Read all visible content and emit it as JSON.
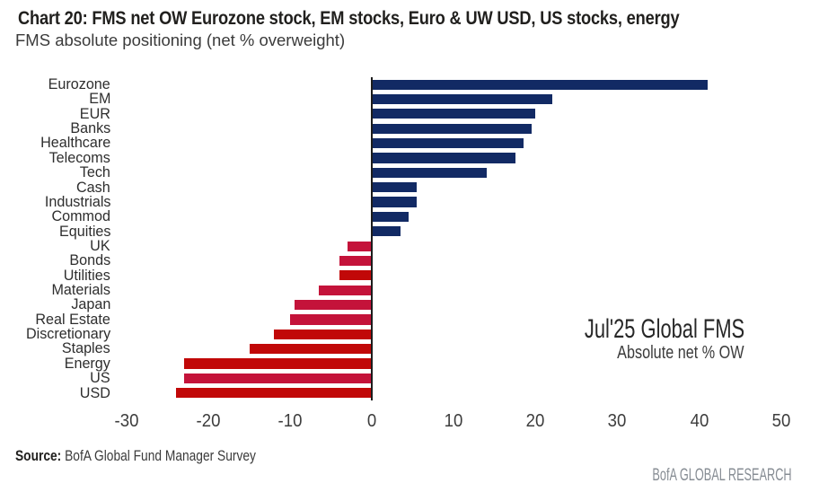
{
  "title": "Chart 20: FMS net OW Eurozone stock, EM stocks, Euro & UW USD, US stocks, energy",
  "subtitle": "FMS absolute positioning (net % overweight)",
  "annotation": {
    "line1": "Jul'25 Global FMS",
    "line2": "Absolute net % OW"
  },
  "source": {
    "label": "Source:",
    "text": " BofA Global Fund Manager Survey"
  },
  "footer": "BofA GLOBAL RESEARCH",
  "colors": {
    "positive_navy": "#122a64",
    "negative_crimson": "#c4133a",
    "negative_red": "#c10808",
    "axis_line": "#1c1c1c"
  },
  "chart_data": {
    "type": "bar",
    "orientation": "horizontal",
    "title": "Chart 20: FMS net OW Eurozone stock, EM stocks, Euro & UW USD, US stocks, energy",
    "subtitle": "FMS absolute positioning (net % overweight)",
    "xlabel": "",
    "ylabel": "",
    "xlim": [
      -30,
      50
    ],
    "xticks": [
      -30,
      -20,
      -10,
      0,
      10,
      20,
      30,
      40,
      50
    ],
    "grid": false,
    "annotation": "Jul'25 Global FMS — Absolute net % OW",
    "categories": [
      "Eurozone",
      "EM",
      "EUR",
      "Banks",
      "Healthcare",
      "Telecoms",
      "Tech",
      "Cash",
      "Industrials",
      "Commod",
      "Equities",
      "UK",
      "Bonds",
      "Utilities",
      "Materials",
      "Japan",
      "Real Estate",
      "Discretionary",
      "Staples",
      "Energy",
      "US",
      "USD"
    ],
    "values": [
      41,
      22,
      20,
      19.5,
      18.5,
      17.5,
      14,
      5.5,
      5.5,
      4.5,
      3.5,
      -3,
      -4,
      -4,
      -6.5,
      -9.5,
      -10,
      -12,
      -15,
      -23,
      -23,
      -24
    ],
    "bar_colors": [
      "#122a64",
      "#122a64",
      "#122a64",
      "#122a64",
      "#122a64",
      "#122a64",
      "#122a64",
      "#122a64",
      "#122a64",
      "#122a64",
      "#122a64",
      "#c4133a",
      "#c4133a",
      "#c10808",
      "#c4133a",
      "#c4133a",
      "#c4133a",
      "#c10808",
      "#c10808",
      "#c10808",
      "#c4133a",
      "#c10808"
    ]
  }
}
